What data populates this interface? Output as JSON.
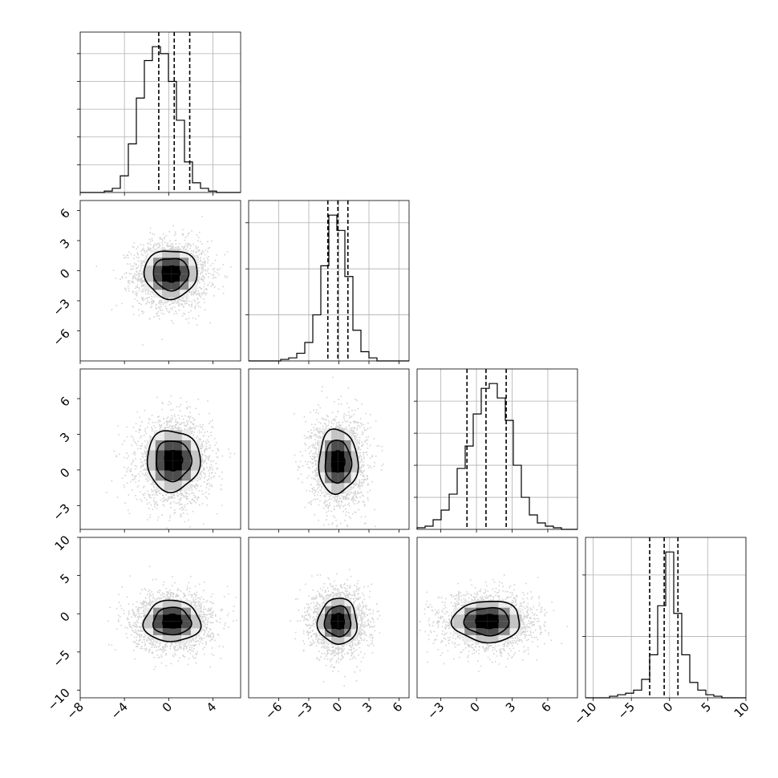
{
  "chart_data": {
    "type": "corner",
    "n_params": 4,
    "ranges": [
      [
        -8,
        6.5
      ],
      [
        -9,
        7
      ],
      [
        -5,
        8.5
      ],
      [
        -11,
        10
      ]
    ],
    "ticks": [
      [
        -8,
        -4,
        0,
        4
      ],
      [
        -6,
        -3,
        0,
        3,
        6
      ],
      [
        -3,
        0,
        3,
        6
      ],
      [
        -10,
        -5,
        0,
        5,
        10
      ]
    ],
    "tick_labels": [
      [
        "−8",
        "−4",
        "0",
        "4"
      ],
      [
        "−6",
        "−3",
        "0",
        "3",
        "6"
      ],
      [
        "−3",
        "0",
        "3",
        "6"
      ],
      [
        "−10",
        "−5",
        "0",
        "5",
        "10"
      ]
    ],
    "histograms": [
      {
        "bins": [
          -8,
          -7.275,
          -6.55,
          -5.825,
          -5.1,
          -4.375,
          -3.65,
          -2.925,
          -2.2,
          -1.475,
          -0.75,
          -0.025,
          0.7,
          1.425,
          2.15,
          2.875,
          3.6,
          4.325,
          5.05,
          5.775,
          6.5
        ],
        "counts": [
          0,
          0,
          0,
          1,
          3,
          12,
          35,
          68,
          95,
          105,
          100,
          80,
          52,
          22,
          7,
          3,
          1,
          0,
          0,
          0
        ],
        "quantiles": [
          -0.9,
          0.5,
          1.9
        ],
        "yticks": [
          20,
          40,
          60,
          80,
          100
        ]
      },
      {
        "bins": [
          -9,
          -8.2,
          -7.4,
          -6.6,
          -5.8,
          -5,
          -4.2,
          -3.4,
          -2.6,
          -1.8,
          -1,
          -0.2,
          0.6,
          1.4,
          2.2,
          3,
          3.8,
          4.6,
          5.4,
          6.2,
          7
        ],
        "counts": [
          0,
          0,
          0,
          0,
          1,
          2,
          5,
          12,
          30,
          62,
          95,
          85,
          55,
          20,
          6,
          2,
          0,
          0,
          0,
          0
        ],
        "quantiles": [
          -1.1,
          -0.1,
          0.9
        ],
        "yticks": [
          30,
          60,
          90
        ]
      },
      {
        "bins": [
          -5,
          -4.325,
          -3.65,
          -2.975,
          -2.3,
          -1.625,
          -0.95,
          -0.275,
          0.4,
          1.075,
          1.75,
          2.425,
          3.1,
          3.775,
          4.45,
          5.125,
          5.8,
          6.475,
          7.15,
          7.825,
          8.5
        ],
        "counts": [
          1,
          2,
          6,
          12,
          22,
          38,
          52,
          72,
          88,
          91,
          82,
          68,
          40,
          20,
          9,
          4,
          2,
          1,
          0,
          0
        ],
        "quantiles": [
          -0.8,
          0.8,
          2.5
        ],
        "yticks": [
          20,
          40,
          60,
          80
        ]
      },
      {
        "bins": [
          -11,
          -9.95,
          -8.9,
          -7.85,
          -6.8,
          -5.75,
          -4.7,
          -3.65,
          -2.6,
          -1.55,
          -0.5,
          0.55,
          1.6,
          2.65,
          3.7,
          4.75,
          5.8,
          6.85,
          7.9,
          8.95,
          10
        ],
        "counts": [
          0,
          0,
          0,
          1,
          2,
          3,
          5,
          12,
          28,
          60,
          95,
          55,
          28,
          10,
          5,
          2,
          1,
          0,
          0,
          0
        ],
        "quantiles": [
          -2.6,
          -0.7,
          1.1
        ],
        "yticks": [
          40,
          80
        ]
      }
    ],
    "pairs": [
      {
        "row": 1,
        "col": 0,
        "center": [
          0.2,
          -0.3
        ],
        "sigma": [
          1.6,
          1.6
        ]
      },
      {
        "row": 2,
        "col": 0,
        "center": [
          0.4,
          0.8
        ],
        "sigma": [
          1.6,
          1.7
        ]
      },
      {
        "row": 2,
        "col": 1,
        "center": [
          -0.1,
          0.7
        ],
        "sigma": [
          1.3,
          1.8
        ]
      },
      {
        "row": 3,
        "col": 0,
        "center": [
          0.3,
          -1.0
        ],
        "sigma": [
          1.7,
          1.8
        ]
      },
      {
        "row": 3,
        "col": 1,
        "center": [
          -0.1,
          -1.0
        ],
        "sigma": [
          1.3,
          2.0
        ]
      },
      {
        "row": 3,
        "col": 2,
        "center": [
          0.9,
          -1.0
        ],
        "sigma": [
          1.9,
          1.8
        ]
      }
    ],
    "contour_levels": [
      0.5,
      1.0,
      1.5
    ],
    "grid": true,
    "colors": {
      "points": "#808080",
      "contour": "#000000",
      "line": "#000000"
    }
  }
}
